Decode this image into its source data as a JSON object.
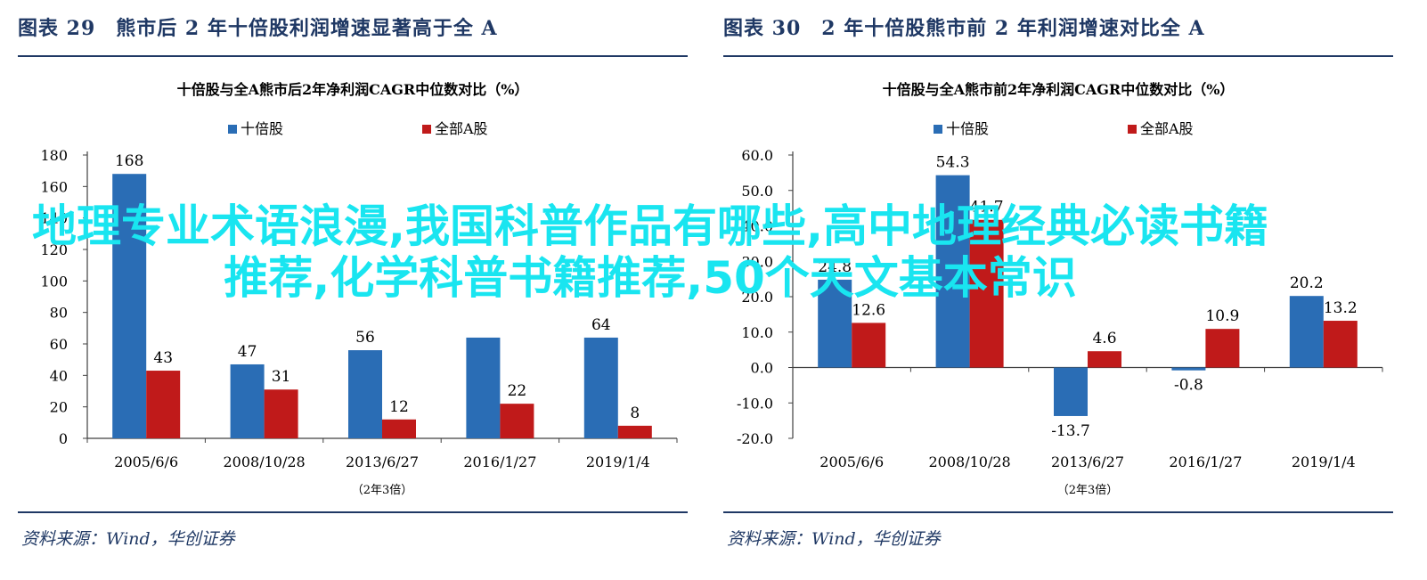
{
  "panels": [
    {
      "fig_title": "图表 29　熊市后 2 年十倍股利润增速显著高于全 A",
      "source": "资料来源：Wind，华创证券"
    },
    {
      "fig_title": "图表 30　2 年十倍股熊市前 2 年利润增速对比全 A",
      "source": "资料来源：Wind，华创证券"
    }
  ],
  "overlay_text": "地理专业术语浪漫,我国科普作品有哪些,高中地理经典必读书籍推荐,化学科普书籍推荐,50个天文基本常识",
  "colors": {
    "series_a": "#2a6db5",
    "series_b": "#c01a1a",
    "title": "#1f3864"
  },
  "chart_data": [
    {
      "type": "bar",
      "title": "十倍股与全A熊市后2年净利润CAGR中位数对比（%）",
      "subtitle": "（2年3倍）",
      "categories": [
        "2005/6/6",
        "2008/10/28",
        "2013/6/27",
        "2016/1/27",
        "2019/1/4"
      ],
      "series": [
        {
          "name": "十倍股",
          "values": [
            168,
            47,
            56,
            64,
            64
          ],
          "labels": [
            "168",
            "47",
            "56",
            "",
            "64"
          ]
        },
        {
          "name": "全部A股",
          "values": [
            43,
            31,
            12,
            22,
            8
          ],
          "labels": [
            "43",
            "31",
            "12",
            "22",
            "8"
          ]
        }
      ],
      "ylim": [
        0,
        180
      ],
      "yticks": [
        "0",
        "20",
        "40",
        "60",
        "80",
        "100",
        "120",
        "140",
        "160",
        "180"
      ],
      "legend": "top"
    },
    {
      "type": "bar",
      "title": "十倍股与全A熊市前2年净利润CAGR中位数对比（%）",
      "subtitle": "（2年3倍）",
      "categories": [
        "2005/6/6",
        "2008/10/28",
        "2013/6/27",
        "2016/1/27",
        "2019/1/4"
      ],
      "series": [
        {
          "name": "十倍股",
          "values": [
            24.8,
            54.3,
            -13.7,
            -0.8,
            20.2
          ],
          "labels": [
            "24.8",
            "54.3",
            "-13.7",
            "-0.8",
            "20.2"
          ]
        },
        {
          "name": "全部A股",
          "values": [
            12.6,
            41.7,
            4.6,
            10.9,
            13.2
          ],
          "labels": [
            "12.6",
            "41.7",
            "4.6",
            "10.9",
            "13.2"
          ]
        }
      ],
      "ylim": [
        -20,
        60
      ],
      "yticks": [
        "-20.0",
        "-10.0",
        "0.0",
        "10.0",
        "20.0",
        "30.0",
        "40.0",
        "50.0",
        "60.0"
      ],
      "legend": "top"
    }
  ]
}
